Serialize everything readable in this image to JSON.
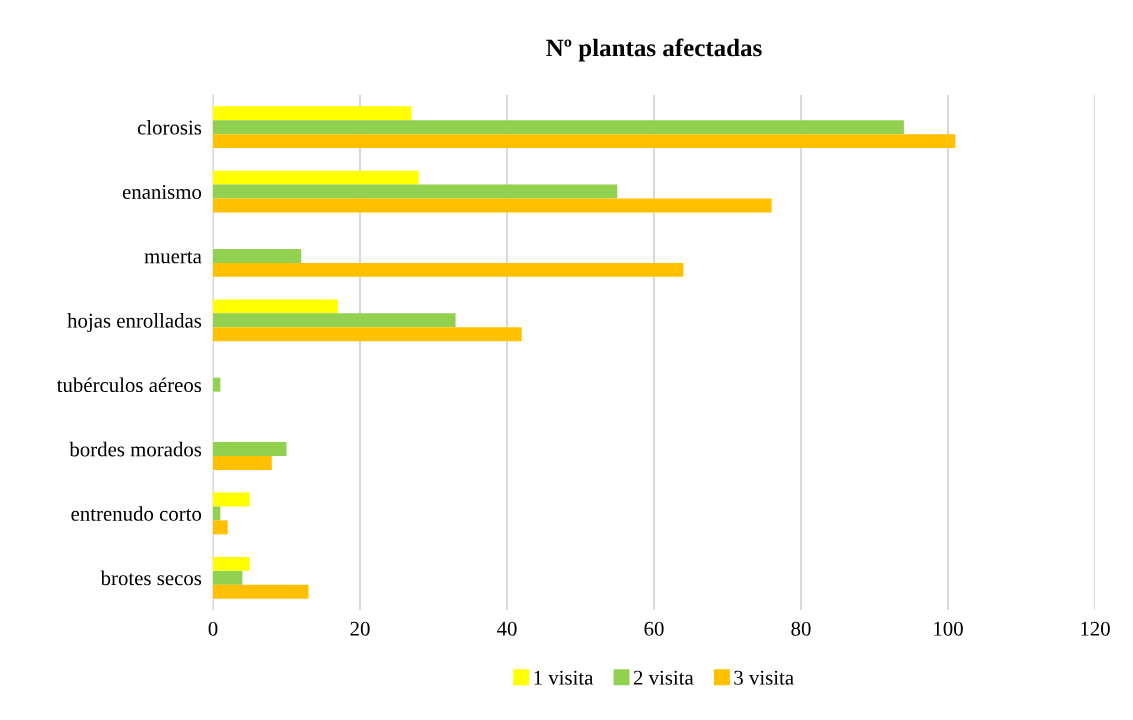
{
  "chart_data": {
    "type": "bar",
    "orientation": "horizontal",
    "title": "Nº plantas afectadas",
    "categories": [
      "clorosis",
      "enanismo",
      "muerta",
      "hojas enrolladas",
      "tubérculos aéreos",
      "bordes morados",
      "entrenudo corto",
      "brotes secos"
    ],
    "series": [
      {
        "name": "1 visita",
        "color": "#ffff00",
        "values": [
          27,
          28,
          0,
          17,
          0,
          0,
          5,
          5
        ]
      },
      {
        "name": "2 visita",
        "color": "#92d050",
        "values": [
          94,
          55,
          12,
          33,
          1,
          10,
          1,
          4
        ]
      },
      {
        "name": "3 visita",
        "color": "#ffc000",
        "values": [
          101,
          76,
          64,
          42,
          0,
          8,
          2,
          13
        ]
      }
    ],
    "xlim": [
      0,
      120
    ],
    "xticks": [
      0,
      20,
      40,
      60,
      80,
      100,
      120
    ],
    "grid": "x",
    "legend": "bottom"
  }
}
